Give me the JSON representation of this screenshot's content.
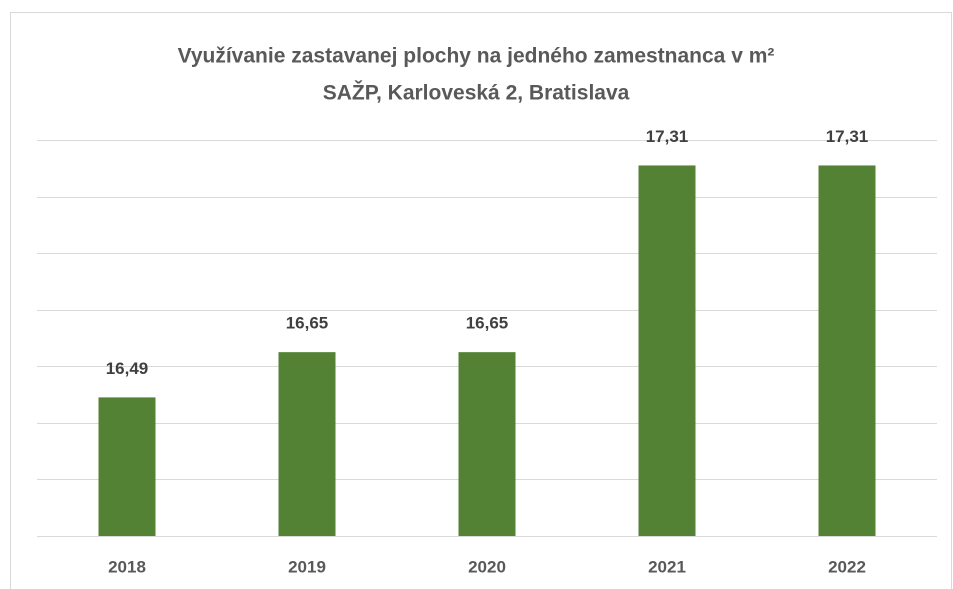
{
  "chart_data": {
    "type": "bar",
    "title": "Využívanie zastavanej plochy na jedného zamestnanca v m²",
    "subtitle": "SAŽP, Karloveská 2, Bratislava",
    "categories": [
      "2018",
      "2019",
      "2020",
      "2021",
      "2022"
    ],
    "values": [
      16.49,
      16.65,
      16.65,
      17.31,
      17.31
    ],
    "value_labels": [
      "16,49",
      "16,65",
      "16,65",
      "17,31",
      "17,31"
    ],
    "color": "#548235",
    "ylim": [
      16,
      17.4
    ],
    "yticks": [
      16,
      16.2,
      16.4,
      16.6,
      16.8,
      17,
      17.2,
      17.4
    ],
    "grid": true
  }
}
